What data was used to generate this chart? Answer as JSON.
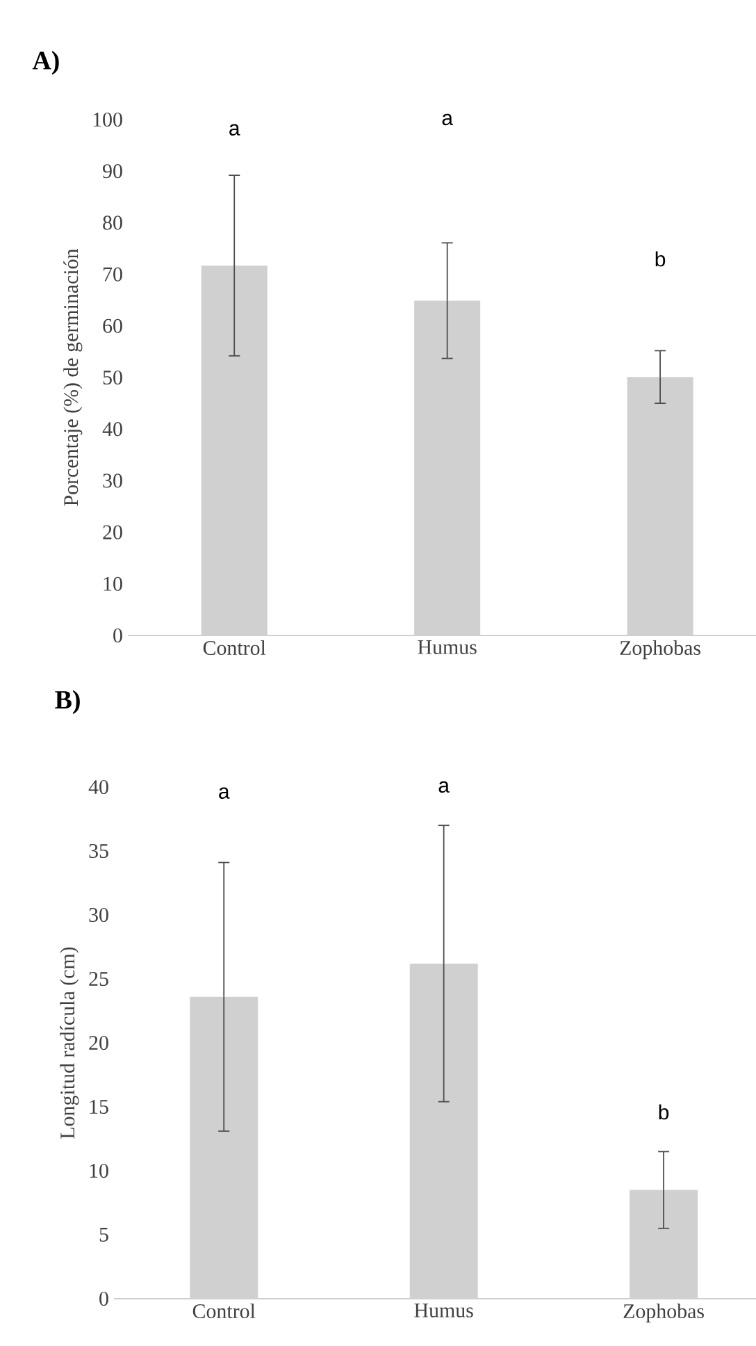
{
  "chart_data": [
    {
      "type": "bar",
      "title": "A)",
      "ylabel": "Porcentaje (%) de germinación",
      "categories": [
        "Control",
        "Humus",
        "Zophobas"
      ],
      "values": [
        71.7,
        64.9,
        50.1
      ],
      "errors": [
        17.5,
        11.2,
        5.1
      ],
      "color": "#d0d0d0",
      "ylim": [
        0,
        100
      ],
      "yticks": [
        0,
        10,
        20,
        30,
        40,
        50,
        60,
        70,
        80,
        90,
        100
      ],
      "grid": false,
      "annotations": [
        "a",
        "a",
        "b"
      ]
    },
    {
      "type": "bar",
      "title": "B)",
      "ylabel": "Longitud radícula (cm)",
      "categories": [
        "Control",
        "Humus",
        "Zophobas"
      ],
      "values": [
        23.6,
        26.2,
        8.5
      ],
      "errors": [
        10.5,
        10.8,
        3
      ],
      "color": "#d0d0d0",
      "ylim": [
        0,
        40
      ],
      "yticks": [
        0,
        5,
        10,
        15,
        20,
        25,
        30,
        35,
        40
      ],
      "grid": false,
      "annotations": [
        "a",
        "a",
        "b"
      ]
    }
  ]
}
